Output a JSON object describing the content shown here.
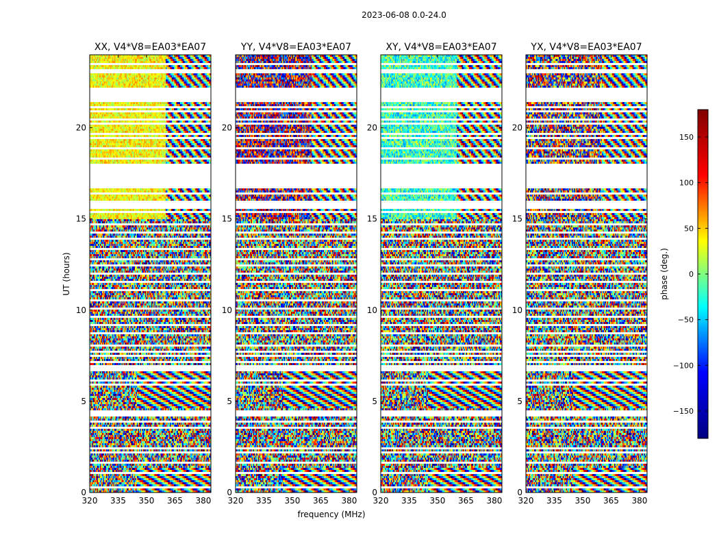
{
  "chart_data": {
    "type": "heatmap",
    "title": "2023-06-08 0.0-24.0",
    "xlabel": "frequency (MHz)",
    "ylabel": "UT (hours)",
    "xlim": [
      320,
      384
    ],
    "ylim": [
      0,
      24
    ],
    "x_ticks": [
      320,
      335,
      350,
      365,
      380
    ],
    "y_ticks": [
      0,
      5,
      10,
      15,
      20
    ],
    "colorbar": {
      "label": "phase (deg.)",
      "range": [
        -180,
        180
      ],
      "ticks": [
        -150,
        -100,
        -50,
        0,
        50,
        100,
        150
      ],
      "colormap": "jet",
      "stops": [
        "#000080",
        "#0000ff",
        "#00ffff",
        "#ffff00",
        "#ff0000",
        "#800000"
      ]
    },
    "panels": [
      {
        "title": "XX, V4*V8=EA03*EA07",
        "coherent_phase_deg": 45,
        "noise_scale": 40,
        "coherent_until_mhz": 360
      },
      {
        "title": "YY, V4*V8=EA03*EA07",
        "coherent_phase_deg": 175,
        "noise_scale": 120,
        "coherent_until_mhz": 360
      },
      {
        "title": "XY, V4*V8=EA03*EA07",
        "coherent_phase_deg": -25,
        "noise_scale": 60,
        "coherent_until_mhz": 360
      },
      {
        "title": "YX, V4*V8=EA03*EA07",
        "coherent_phase_deg": 150,
        "noise_scale": 150,
        "coherent_until_mhz": 360
      }
    ],
    "coherent_intervals_ut": [
      [
        15.0,
        16.7
      ],
      [
        18.0,
        21.4
      ],
      [
        22.2,
        24.0
      ]
    ],
    "flagged_intervals_ut": [
      [
        16.7,
        18.0
      ],
      [
        21.4,
        22.2
      ],
      [
        23.0,
        23.2
      ],
      [
        4.2,
        4.5
      ],
      [
        6.7,
        7.0
      ],
      [
        15.6,
        16.0
      ]
    ],
    "flagged_lines_ut": [
      0.3,
      1.05,
      1.65,
      2.15,
      2.4,
      3.5,
      3.85,
      5.9,
      6.15,
      7.2,
      7.45,
      7.7,
      8.1,
      8.7,
      9.2,
      9.6,
      10.05,
      10.5,
      11.1,
      11.55,
      12.0,
      12.4,
      12.75,
      13.3,
      13.9,
      14.3,
      14.75,
      15.35,
      16.35,
      18.3,
      18.9,
      19.4,
      19.7,
      20.2,
      20.5,
      20.9,
      21.15,
      23.45
    ],
    "fringe_intervals_ut": [
      [
        4.6,
        6.6
      ],
      [
        0.0,
        1.3
      ]
    ]
  }
}
